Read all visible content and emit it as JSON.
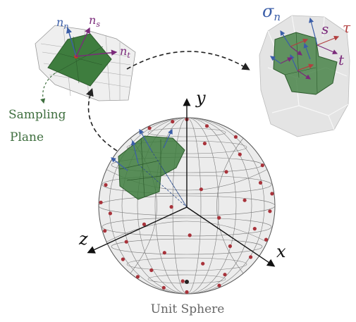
{
  "sphere": {
    "caption": "Unit Sphere",
    "axes": {
      "x": "x",
      "y": "y",
      "z": "z"
    }
  },
  "sampling_plane": {
    "line1": "Sampling",
    "line2": "Plane",
    "vectors": {
      "n_base": "n",
      "n_sub": "n",
      "s_base": "n",
      "s_sub": "s",
      "t_base": "n",
      "t_sub": "t"
    }
  },
  "stress_patch": {
    "sigma_base": "σ",
    "sigma_sub": "n",
    "s": "s",
    "t": "t",
    "tau": "τ"
  },
  "colors": {
    "patch_green": "#3e7d3e",
    "vector_blue": "#3b5ea8",
    "vector_purple": "#7a2a7a",
    "dot_red": "#a8323a",
    "caption_green": "#3f6f3f",
    "tau_red": "#b24040"
  }
}
